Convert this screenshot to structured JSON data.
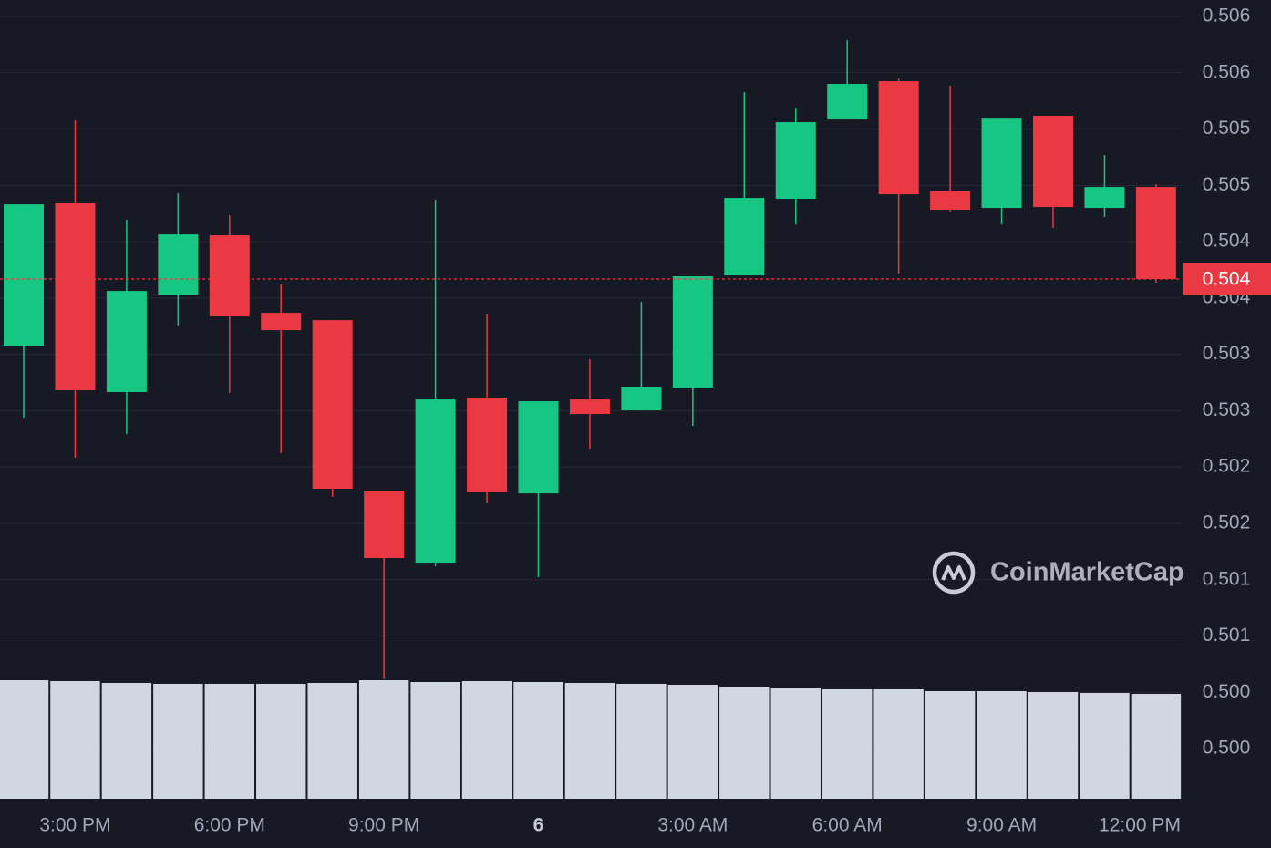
{
  "chart_data": {
    "type": "candlestick",
    "watermark": "CoinMarketCap",
    "categories": [
      null,
      "3:00 PM",
      null,
      null,
      "6:00 PM",
      null,
      null,
      "9:00 PM",
      null,
      null,
      "6",
      null,
      null,
      "3:00 AM",
      null,
      null,
      "6:00 AM",
      null,
      null,
      "9:00 AM",
      null,
      null,
      "12:00 PM"
    ],
    "open": [
      0.503578,
      0.504841,
      0.503165,
      0.504031,
      0.504557,
      0.503869,
      0.503804,
      0.502291,
      0.501651,
      0.503116,
      0.502266,
      0.5031,
      0.503003,
      0.503205,
      0.504201,
      0.504881,
      0.505585,
      0.505925,
      0.504946,
      0.5048,
      0.505618,
      0.5048,
      0.504986
    ],
    "high": [
      0.504832,
      0.505577,
      0.504695,
      0.50493,
      0.504735,
      0.50412,
      0.503804,
      0.502291,
      0.504873,
      0.503861,
      0.503084,
      0.503456,
      0.503966,
      0.504193,
      0.505828,
      0.50569,
      0.506289,
      0.505949,
      0.505885,
      0.505601,
      0.505618,
      0.50527,
      0.505011
    ],
    "low": [
      0.502938,
      0.502582,
      0.502793,
      0.503756,
      0.503157,
      0.502623,
      0.502234,
      0.500615,
      0.501619,
      0.502177,
      0.501522,
      0.502663,
      0.503003,
      0.502865,
      0.504201,
      0.504654,
      0.505585,
      0.504217,
      0.504768,
      0.504654,
      0.504622,
      0.504719,
      0.504136
    ],
    "close": [
      0.504832,
      0.503181,
      0.504063,
      0.504565,
      0.503837,
      0.503715,
      0.502307,
      0.501692,
      0.5031,
      0.502275,
      0.503084,
      0.502971,
      0.503214,
      0.504193,
      0.504889,
      0.505561,
      0.505901,
      0.504921,
      0.504784,
      0.505601,
      0.504808,
      0.504986,
      0.504169
    ],
    "volume": [
      130,
      129,
      127,
      126,
      126,
      126,
      127,
      130,
      128,
      129,
      128,
      127,
      126,
      125,
      123,
      122,
      120,
      120,
      118,
      118,
      117,
      116,
      115
    ],
    "up_color": "#16c784",
    "down_color": "#ea3943",
    "volume_color": "#d1d6e3",
    "last_price": 0.504169,
    "last_price_label": "0.504",
    "ylim": [
      0.499555,
      0.506646
    ],
    "yticks": [
      {
        "value": 0.5,
        "label": "0.500"
      },
      {
        "value": 0.5005,
        "label": "0.500"
      },
      {
        "value": 0.501,
        "label": "0.501"
      },
      {
        "value": 0.5015,
        "label": "0.501"
      },
      {
        "value": 0.502,
        "label": "0.502"
      },
      {
        "value": 0.5025,
        "label": "0.502"
      },
      {
        "value": 0.503,
        "label": "0.503"
      },
      {
        "value": 0.5035,
        "label": "0.503"
      },
      {
        "value": 0.504,
        "label": "0.504"
      },
      {
        "value": 0.5045,
        "label": "0.504"
      },
      {
        "value": 0.505,
        "label": "0.505"
      },
      {
        "value": 0.5055,
        "label": "0.505"
      },
      {
        "value": 0.506,
        "label": "0.506"
      },
      {
        "value": 0.5065,
        "label": "0.506"
      }
    ],
    "grid": true
  }
}
